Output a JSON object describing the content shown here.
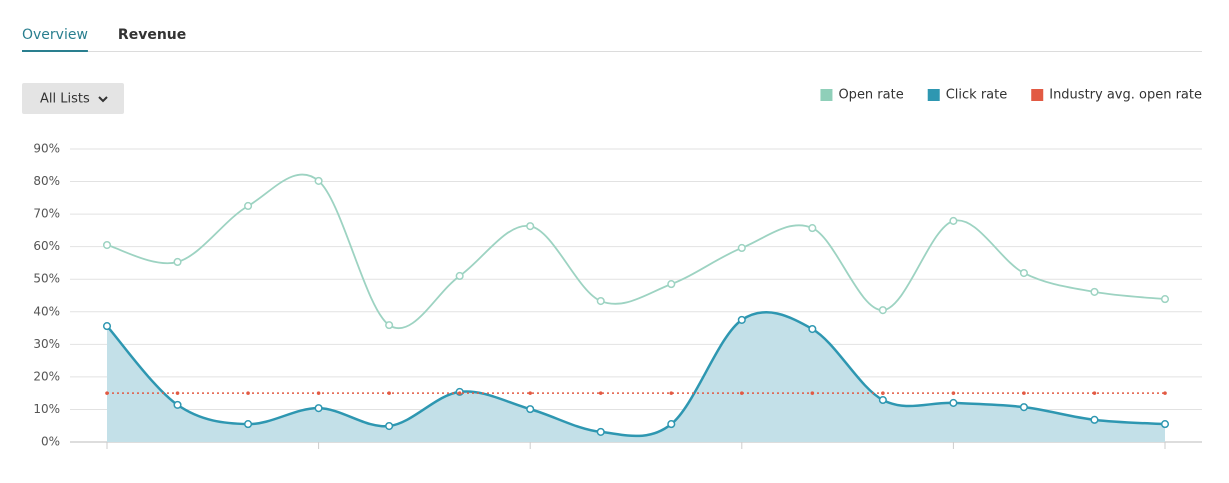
{
  "tabs": [
    {
      "label": "Overview",
      "active": true
    },
    {
      "label": "Revenue",
      "active": false
    }
  ],
  "filter": {
    "label": "All Lists"
  },
  "chart_data": {
    "type": "line",
    "series": [
      {
        "name": "Open rate",
        "color": "#9dd3c2",
        "legend_color": "#8fcfb9",
        "markers": true,
        "values": [
          60.5,
          55.3,
          72.5,
          80.2,
          35.9,
          51,
          66.3,
          43.3,
          48.5,
          59.6,
          65.7,
          40.5,
          67.9,
          51.9,
          46.1,
          43.9
        ]
      },
      {
        "name": "Click rate",
        "color": "#2e97b1",
        "legend_color": "#2e97b1",
        "markers": true,
        "area": true,
        "area_color": "#c3e0e8",
        "values": [
          35.6,
          11.4,
          5.5,
          10.4,
          4.9,
          15.4,
          10.1,
          3.1,
          5.5,
          37.5,
          34.7,
          12.9,
          12,
          10.7,
          6.8,
          5.5
        ]
      },
      {
        "name": "Industry avg. open rate",
        "color": "#e25a43",
        "legend_color": "#e25a43",
        "dotted": true,
        "values": [
          15,
          15,
          15,
          15,
          15,
          15,
          15,
          15,
          15,
          15,
          15,
          15,
          15,
          15,
          15,
          15
        ]
      }
    ],
    "ylim": [
      0,
      90
    ],
    "yticks": [
      {
        "value": 0,
        "label": "0%"
      },
      {
        "value": 10,
        "label": "10%"
      },
      {
        "value": 20,
        "label": "20%"
      },
      {
        "value": 30,
        "label": "30%"
      },
      {
        "value": 40,
        "label": "40%"
      },
      {
        "value": 50,
        "label": "50%"
      },
      {
        "value": 60,
        "label": "60%"
      },
      {
        "value": 70,
        "label": "70%"
      },
      {
        "value": 80,
        "label": "80%"
      },
      {
        "value": 90,
        "label": "90%"
      }
    ],
    "grid": true,
    "legend": "top-right"
  }
}
